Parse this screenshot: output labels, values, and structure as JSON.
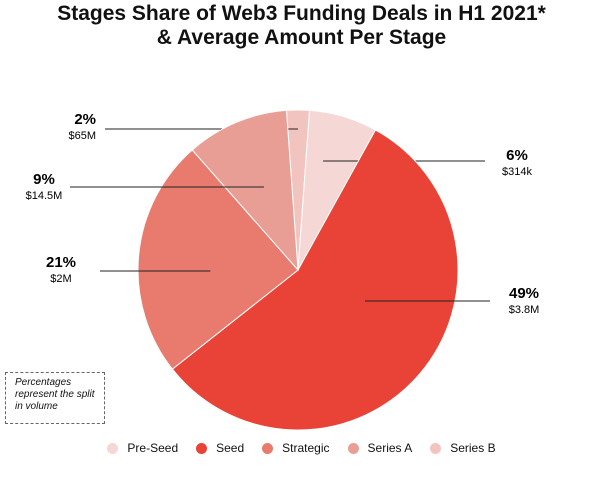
{
  "title_line1": "Stages Share of Web3 Funding Deals in H1 2021*",
  "title_line2": "& Average Amount Per Stage",
  "note": "Percentages represent the split in volume",
  "chart_data": {
    "type": "pie",
    "title": "Stages Share of Web3 Funding Deals in H1 2021* & Average Amount Per Stage",
    "legend_position": "bottom",
    "slices": [
      {
        "label": "Series B",
        "value": 2,
        "pct_label": "2%",
        "amount_label": "$65M",
        "color": "#f2c4c0"
      },
      {
        "label": "Pre-Seed",
        "value": 6,
        "pct_label": "6%",
        "amount_label": "$314k",
        "color": "#f5d8d5"
      },
      {
        "label": "Seed",
        "value": 49,
        "pct_label": "49%",
        "amount_label": "$3.8M",
        "color": "#e84336"
      },
      {
        "label": "Strategic",
        "value": 21,
        "pct_label": "21%",
        "amount_label": "$2M",
        "color": "#e87a6e"
      },
      {
        "label": "Series A",
        "value": 9,
        "pct_label": "9%",
        "amount_label": "$14.5M",
        "color": "#e89e95"
      }
    ],
    "legend": [
      "Pre-Seed",
      "Seed",
      "Strategic",
      "Series A",
      "Series B"
    ]
  }
}
